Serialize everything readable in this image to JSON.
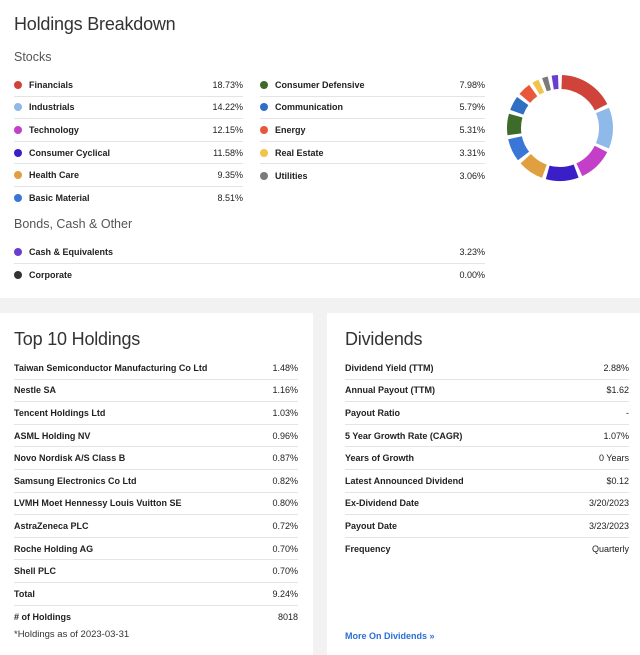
{
  "breakdown": {
    "title": "Holdings Breakdown",
    "stocks_heading": "Stocks",
    "stocks_left": [
      {
        "label": "Financials",
        "value": "18.73%",
        "color": "#d0433b"
      },
      {
        "label": "Industrials",
        "value": "14.22%",
        "color": "#8fb9e8"
      },
      {
        "label": "Technology",
        "value": "12.15%",
        "color": "#c43fc8"
      },
      {
        "label": "Consumer Cyclical",
        "value": "11.58%",
        "color": "#3a1fc9"
      },
      {
        "label": "Health Care",
        "value": "9.35%",
        "color": "#e0a040"
      },
      {
        "label": "Basic Material",
        "value": "8.51%",
        "color": "#3a76d8"
      }
    ],
    "stocks_right": [
      {
        "label": "Consumer Defensive",
        "value": "7.98%",
        "color": "#3e6b2a"
      },
      {
        "label": "Communication",
        "value": "5.79%",
        "color": "#2f6fc4"
      },
      {
        "label": "Energy",
        "value": "5.31%",
        "color": "#e8573a"
      },
      {
        "label": "Real Estate",
        "value": "3.31%",
        "color": "#f2c24a"
      },
      {
        "label": "Utilities",
        "value": "3.06%",
        "color": "#7a7a7a"
      }
    ],
    "other_heading": "Bonds, Cash & Other",
    "other": [
      {
        "label": "Cash & Equivalents",
        "value": "3.23%",
        "color": "#6a3fd0"
      },
      {
        "label": "Corporate",
        "value": "0.00%",
        "color": "#333333"
      }
    ],
    "donut": [
      {
        "label": "Financials",
        "value": 18.73,
        "color": "#d0433b"
      },
      {
        "label": "Industrials",
        "value": 14.22,
        "color": "#8fb9e8"
      },
      {
        "label": "Technology",
        "value": 12.15,
        "color": "#c43fc8"
      },
      {
        "label": "Consumer Cyclical",
        "value": 11.58,
        "color": "#3a1fc9"
      },
      {
        "label": "Health Care",
        "value": 9.35,
        "color": "#e0a040"
      },
      {
        "label": "Basic Material",
        "value": 8.51,
        "color": "#3a76d8"
      },
      {
        "label": "Consumer Defensive",
        "value": 7.98,
        "color": "#3e6b2a"
      },
      {
        "label": "Communication",
        "value": 5.79,
        "color": "#2f6fc4"
      },
      {
        "label": "Energy",
        "value": 5.31,
        "color": "#e8573a"
      },
      {
        "label": "Real Estate",
        "value": 3.31,
        "color": "#f2c24a"
      },
      {
        "label": "Utilities",
        "value": 3.06,
        "color": "#7a7a7a"
      },
      {
        "label": "Cash & Equivalents",
        "value": 3.23,
        "color": "#6a3fd0"
      }
    ]
  },
  "top10": {
    "title": "Top 10 Holdings",
    "rows": [
      {
        "label": "Taiwan Semiconductor Manufacturing Co Ltd",
        "value": "1.48%"
      },
      {
        "label": "Nestle SA",
        "value": "1.16%"
      },
      {
        "label": "Tencent Holdings Ltd",
        "value": "1.03%"
      },
      {
        "label": "ASML Holding NV",
        "value": "0.96%"
      },
      {
        "label": "Novo Nordisk A/S Class B",
        "value": "0.87%"
      },
      {
        "label": "Samsung Electronics Co Ltd",
        "value": "0.82%"
      },
      {
        "label": "LVMH Moet Hennessy Louis Vuitton SE",
        "value": "0.80%"
      },
      {
        "label": "AstraZeneca PLC",
        "value": "0.72%"
      },
      {
        "label": "Roche Holding AG",
        "value": "0.70%"
      },
      {
        "label": "Shell PLC",
        "value": "0.70%"
      },
      {
        "label": "Total",
        "value": "9.24%"
      },
      {
        "label": "# of Holdings",
        "value": "8018"
      }
    ],
    "footnote": "*Holdings as of 2023-03-31"
  },
  "dividends": {
    "title": "Dividends",
    "rows": [
      {
        "label": "Dividend Yield (TTM)",
        "value": "2.88%"
      },
      {
        "label": "Annual Payout (TTM)",
        "value": "$1.62"
      },
      {
        "label": "Payout Ratio",
        "value": "-"
      },
      {
        "label": "5 Year Growth Rate (CAGR)",
        "value": "1.07%"
      },
      {
        "label": "Years of Growth",
        "value": "0 Years"
      },
      {
        "label": "Latest Announced Dividend",
        "value": "$0.12"
      },
      {
        "label": "Ex-Dividend Date",
        "value": "3/20/2023"
      },
      {
        "label": "Payout Date",
        "value": "3/23/2023"
      },
      {
        "label": "Frequency",
        "value": "Quarterly"
      }
    ],
    "more_link": "More On Dividends »"
  }
}
